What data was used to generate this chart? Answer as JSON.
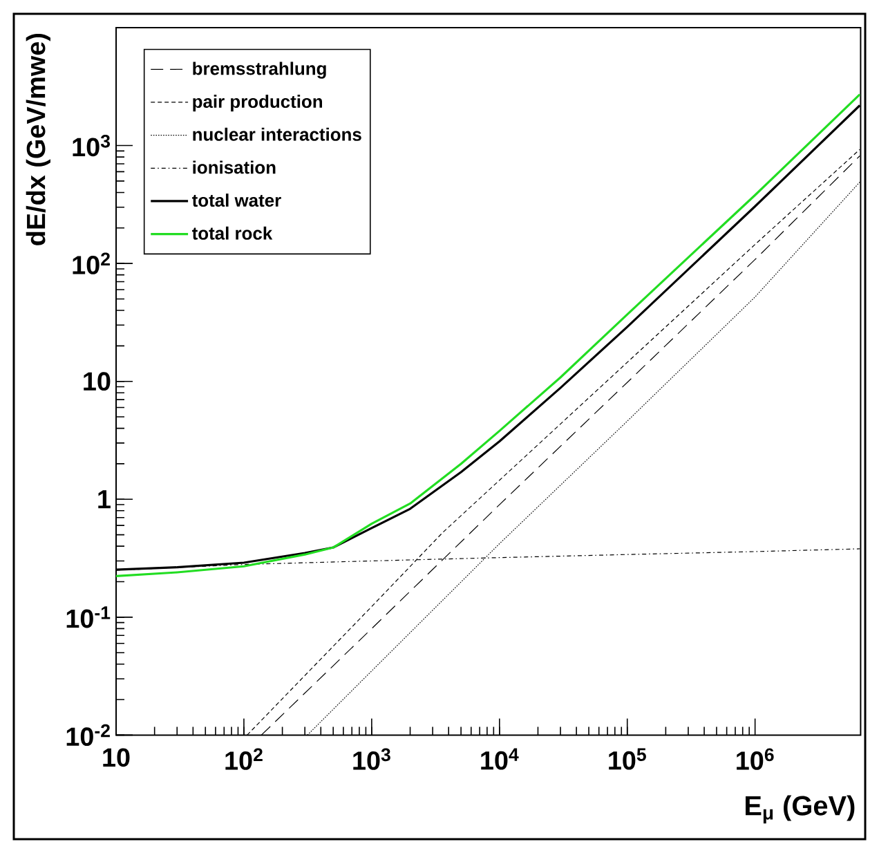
{
  "chart_data": {
    "type": "line",
    "xlabel": "E$_{μ}$ (GeV)",
    "ylabel": "dE/dx (GeV/mwe)",
    "log": "xy",
    "xlim": [
      10,
      6700000
    ],
    "ylim": [
      0.01,
      10000
    ],
    "xticks": [
      10,
      {
        "value": 100,
        "label": "10$^{2}$"
      },
      {
        "value": 1000,
        "label": "10$^{3}$"
      },
      {
        "value": 10000,
        "label": "10$^{4}$"
      },
      {
        "value": 100000,
        "label": "10$^{5}$"
      },
      {
        "value": 1000000,
        "label": "10$^{6}$"
      }
    ],
    "yticks": [
      {
        "value": 0.01,
        "label": "10$^{-2}$"
      },
      {
        "value": 0.1,
        "label": "10$^{-1}$"
      },
      1,
      10,
      {
        "value": 100,
        "label": "10$^{2}$"
      },
      {
        "value": 1000,
        "label": "10$^{3}$"
      }
    ],
    "grid": false,
    "legend": "top left",
    "marker": "none",
    "series": [
      {
        "name": "bremsstrahlung",
        "color": "#000000",
        "line_style": "long dashed",
        "x": [
          137,
          1000,
          10000,
          100000,
          1000000,
          6600000
        ],
        "values": [
          0.01,
          0.08,
          0.9,
          9.8,
          108,
          817
        ]
      },
      {
        "name": "pair production",
        "color": "#000000",
        "line_style": "dashed",
        "x": [
          106,
          1000,
          3580,
          10000,
          100000,
          1000000,
          6600000
        ],
        "values": [
          0.01,
          0.123,
          0.52,
          1.45,
          14.5,
          145,
          927
        ]
      },
      {
        "name": "nuclear interactions",
        "color": "#000000",
        "line_style": "dotted",
        "x": [
          314,
          1000,
          10000,
          100000,
          1000000,
          6600000
        ],
        "values": [
          0.01,
          0.035,
          0.42,
          4.6,
          52,
          490
        ]
      },
      {
        "name": "ionisation",
        "color": "#000000",
        "line_style": "dashdotted",
        "x": [
          10,
          100,
          1000,
          10000,
          100000,
          1000000,
          6600000
        ],
        "values": [
          0.25,
          0.28,
          0.3,
          0.32,
          0.34,
          0.36,
          0.38
        ]
      },
      {
        "name": "total water",
        "color": "#000000",
        "line_style": "solid",
        "x": [
          10,
          30,
          100,
          300,
          500,
          1000,
          2000,
          5000,
          10000,
          30000,
          100000,
          1000000,
          6600000
        ],
        "values": [
          0.253,
          0.265,
          0.29,
          0.35,
          0.39,
          0.57,
          0.83,
          1.7,
          3.1,
          8.8,
          29,
          305,
          2190
        ]
      },
      {
        "name": "total rock",
        "color": "#22dd22",
        "line_style": "solid",
        "x": [
          10,
          30,
          100,
          300,
          500,
          1000,
          2000,
          5000,
          10000,
          30000,
          100000,
          1000000,
          6600000
        ],
        "values": [
          0.223,
          0.24,
          0.27,
          0.34,
          0.39,
          0.62,
          0.92,
          2.0,
          3.8,
          10.8,
          37,
          380,
          2710
        ]
      }
    ]
  }
}
